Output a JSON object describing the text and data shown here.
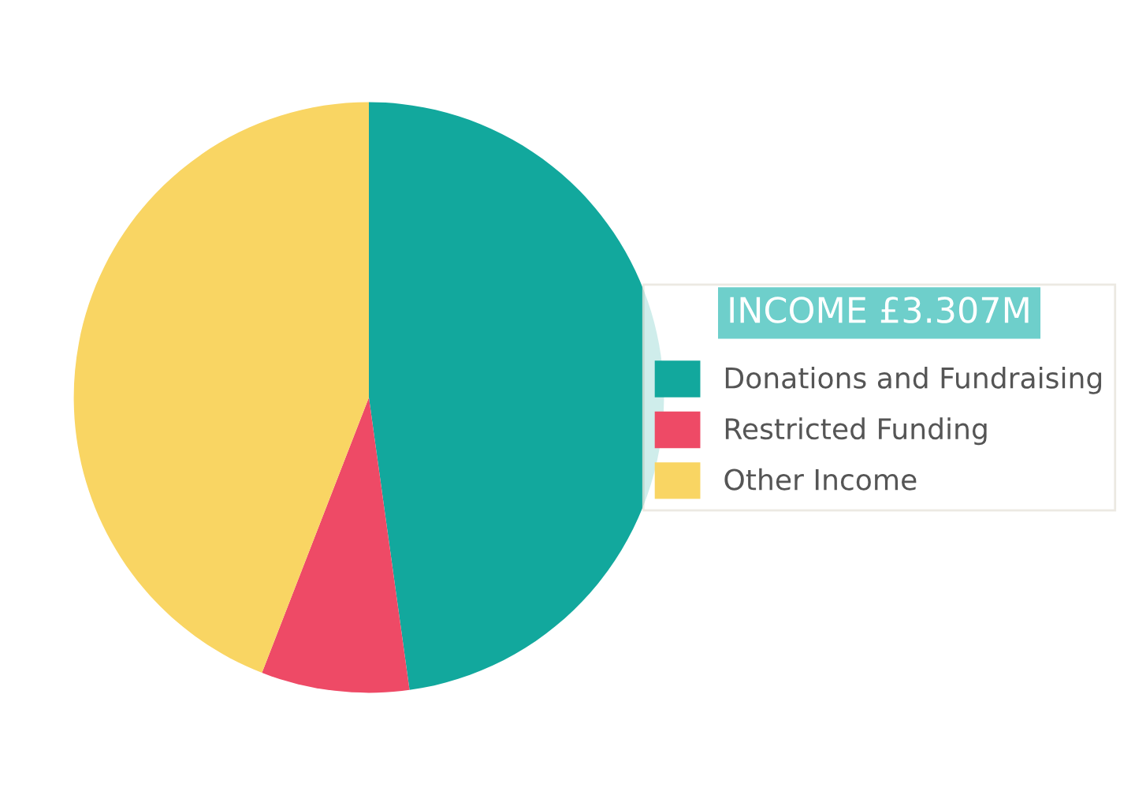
{
  "chart_data": {
    "type": "pie",
    "legend_title": "INCOME £3.307M",
    "legend": "right",
    "categories": [
      "Donations and Fundraising",
      "Restricted Funding",
      "Other Income"
    ],
    "values": [
      47.8,
      8.1,
      44.1
    ],
    "colors": [
      "#12a89d",
      "#ee4a66",
      "#f9d563"
    ]
  }
}
